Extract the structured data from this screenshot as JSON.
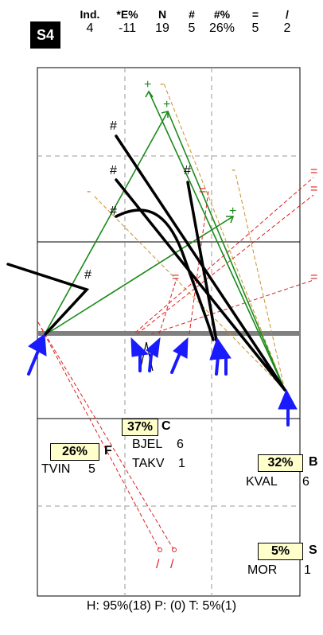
{
  "header": {
    "badge": "S4",
    "columns": [
      {
        "head": "Ind.",
        "value": "4"
      },
      {
        "head": "*E%",
        "value": "-11"
      },
      {
        "head": "N",
        "value": "19"
      },
      {
        "head": "#",
        "value": "5"
      },
      {
        "head": "#%",
        "value": "26%"
      },
      {
        "head": "=",
        "value": "5"
      },
      {
        "head": "/",
        "value": "2"
      }
    ]
  },
  "diagram": {
    "marks": {
      "hash": "#",
      "plus": "+",
      "equals": "=",
      "minus": "-",
      "slash": "/"
    }
  },
  "groups": {
    "c": {
      "pct": "37%",
      "code": "C",
      "rows": [
        {
          "name": "BJEL",
          "count": "6"
        },
        {
          "name": "TAKV",
          "count": "1"
        }
      ]
    },
    "f": {
      "pct": "26%",
      "code": "F",
      "rows": [
        {
          "name": "TVIN",
          "count": "5"
        }
      ]
    },
    "b": {
      "pct": "32%",
      "code": "B",
      "rows": [
        {
          "name": "KVAL",
          "count": "6"
        }
      ]
    },
    "s": {
      "pct": "5%",
      "code": "S",
      "rows": [
        {
          "name": "MOR",
          "count": "1"
        }
      ]
    }
  },
  "footer": {
    "text": "H: 95%(18)  P: (0)  T: 5%(1)"
  },
  "colors": {
    "green": "#1a8a1a",
    "red": "#e02020",
    "orange": "#c8902a",
    "blue": "#1a1aff",
    "grey": "#808080"
  }
}
